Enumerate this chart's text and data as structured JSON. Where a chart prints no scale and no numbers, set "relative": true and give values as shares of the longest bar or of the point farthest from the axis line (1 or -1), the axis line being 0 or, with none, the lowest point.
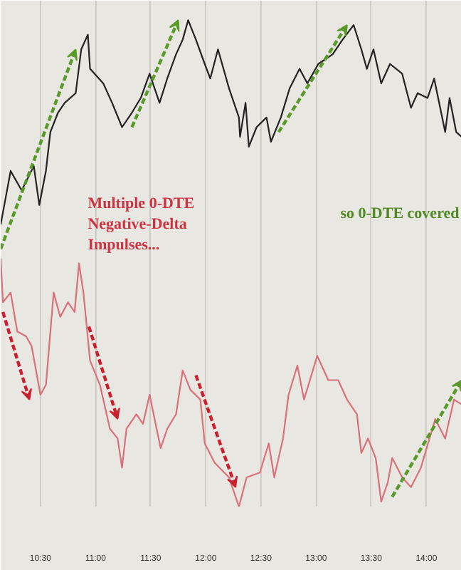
{
  "chart_data": {
    "type": "line",
    "relative": true,
    "grid": "x",
    "xlim": [
      10.14,
      14.32
    ],
    "xticks": [
      {
        "value": 10.5,
        "label": "10:30"
      },
      {
        "value": 11,
        "label": "11:00"
      },
      {
        "value": 11.5,
        "label": "11:30"
      },
      {
        "value": 12,
        "label": "12:00"
      },
      {
        "value": 12.5,
        "label": "12:30"
      },
      {
        "value": 13,
        "label": "13:00"
      },
      {
        "value": 13.5,
        "label": "13:30"
      },
      {
        "value": 14,
        "label": "14:00"
      }
    ],
    "annotations": [
      "Multiple 0-DTE\nNegative-Delta\nImpulses...",
      "so 0-DTE covered"
    ],
    "series": [
      {
        "color": "#222222",
        "x": [
          10.14,
          10.23,
          10.33,
          10.44,
          10.49,
          10.55,
          10.59,
          10.66,
          10.72,
          10.82,
          10.87,
          10.93,
          10.95,
          11.07,
          11.15,
          11.24,
          11.33,
          11.41,
          11.49,
          11.58,
          11.65,
          11.73,
          11.79,
          11.84,
          11.91,
          11.99,
          12.04,
          12.11,
          12.21,
          12.3,
          12.31,
          12.36,
          12.39,
          12.46,
          12.55,
          12.59,
          12.68,
          12.76,
          12.85,
          12.92,
          13.02,
          13.15,
          13.24,
          13.34,
          13.41,
          13.46,
          13.52,
          13.59,
          13.67,
          13.78,
          13.86,
          13.92,
          14.01,
          14.07,
          14.17,
          14.21,
          14.27,
          14.32
        ],
        "values": [
          0.58,
          0.69,
          0.65,
          0.7,
          0.62,
          0.69,
          0.77,
          0.81,
          0.83,
          0.85,
          0.94,
          0.97,
          0.9,
          0.87,
          0.83,
          0.78,
          0.81,
          0.84,
          0.89,
          0.83,
          0.88,
          0.93,
          0.96,
          1.0,
          0.96,
          0.91,
          0.88,
          0.94,
          0.86,
          0.8,
          0.76,
          0.83,
          0.74,
          0.78,
          0.8,
          0.75,
          0.8,
          0.86,
          0.9,
          0.87,
          0.91,
          0.93,
          0.96,
          0.99,
          0.94,
          0.9,
          0.94,
          0.87,
          0.91,
          0.89,
          0.82,
          0.85,
          0.84,
          0.88,
          0.77,
          0.84,
          0.77,
          0.76
        ]
      },
      {
        "color": "#d9707a",
        "x": [
          10.14,
          10.16,
          10.23,
          10.29,
          10.37,
          10.42,
          10.46,
          10.5,
          10.55,
          10.62,
          10.68,
          10.75,
          10.81,
          10.85,
          10.89,
          10.95,
          11.04,
          11.13,
          11.2,
          11.24,
          11.28,
          11.37,
          11.43,
          11.49,
          11.59,
          11.65,
          11.73,
          11.79,
          11.86,
          11.95,
          11.99,
          12.08,
          12.21,
          12.3,
          12.37,
          12.49,
          12.57,
          12.62,
          12.7,
          12.75,
          12.83,
          12.89,
          13.01,
          13.11,
          13.2,
          13.28,
          13.37,
          13.41,
          13.47,
          13.54,
          13.59,
          13.65,
          13.69,
          13.78,
          13.86,
          13.95,
          14.08,
          14.17,
          14.25,
          14.32
        ],
        "values": [
          0.51,
          0.42,
          0.44,
          0.36,
          0.35,
          0.33,
          0.28,
          0.23,
          0.25,
          0.44,
          0.39,
          0.42,
          0.4,
          0.5,
          0.44,
          0.3,
          0.25,
          0.16,
          0.14,
          0.08,
          0.16,
          0.19,
          0.17,
          0.23,
          0.12,
          0.16,
          0.19,
          0.28,
          0.24,
          0.22,
          0.13,
          0.09,
          0.06,
          0,
          0.06,
          0.07,
          0.13,
          0.06,
          0.14,
          0.23,
          0.29,
          0.22,
          0.31,
          0.26,
          0.26,
          0.22,
          0.19,
          0.11,
          0.14,
          0.1,
          0.01,
          0.05,
          0.1,
          0.06,
          0.04,
          0.08,
          0.18,
          0.14,
          0.22,
          0.21
        ]
      }
    ]
  }
}
